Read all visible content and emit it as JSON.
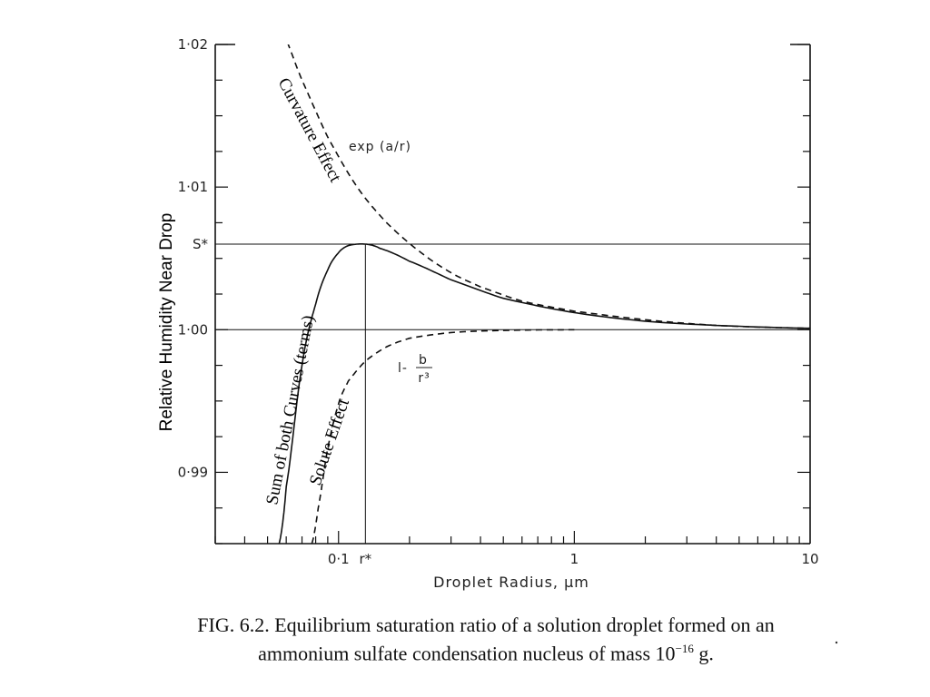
{
  "chart_data": {
    "type": "line",
    "xscale": "log",
    "xlim": [
      0.03,
      10
    ],
    "ylim": [
      0.985,
      1.02
    ],
    "xlabel": "Droplet Radius, μm",
    "ylabel": "Relative Humidity Near Drop",
    "x_ticks": [
      {
        "value": 0.1,
        "label": "0·1"
      },
      {
        "value": 0.13,
        "label": "r*"
      },
      {
        "value": 1,
        "label": "1"
      },
      {
        "value": 10,
        "label": "10"
      }
    ],
    "y_ticks": [
      {
        "value": 1.02,
        "label": "1·02"
      },
      {
        "value": 1.01,
        "label": "1·01"
      },
      {
        "value": 1.006,
        "label": "S*"
      },
      {
        "value": 1.0,
        "label": "1·00"
      },
      {
        "value": 0.99,
        "label": "0·99"
      }
    ],
    "series": [
      {
        "name": "exp (a/r)",
        "style": "dashed",
        "x": [
          0.055,
          0.07,
          0.09,
          0.12,
          0.16,
          0.22,
          0.3,
          0.4,
          0.6,
          1,
          2,
          4,
          10
        ],
        "y": [
          1.0215,
          1.0175,
          1.0135,
          1.01,
          1.0075,
          1.0055,
          1.004,
          1.003,
          1.002,
          1.0013,
          1.0007,
          1.0003,
          1.0001
        ]
      },
      {
        "name": "1 - b/r³",
        "style": "dashed",
        "x": [
          0.077,
          0.082,
          0.09,
          0.1,
          0.11,
          0.13,
          0.16,
          0.2,
          0.3,
          0.5,
          1
        ],
        "y": [
          0.985,
          0.9875,
          0.9917,
          0.9948,
          0.9964,
          0.9978,
          0.9988,
          0.9994,
          0.9998,
          0.99995,
          1.0
        ]
      },
      {
        "name": "Sum of both Curves (terms)",
        "style": "solid",
        "x": [
          0.056,
          0.06,
          0.07,
          0.08,
          0.09,
          0.1,
          0.11,
          0.13,
          0.15,
          0.2,
          0.3,
          0.5,
          1,
          2,
          4,
          10
        ],
        "y": [
          0.985,
          0.989,
          0.9975,
          1.0018,
          1.0042,
          1.0054,
          1.0059,
          1.006,
          1.0057,
          1.0048,
          1.0035,
          1.0022,
          1.0012,
          1.0006,
          1.0003,
          1.0001
        ]
      }
    ],
    "reference_lines": [
      {
        "label": "S*",
        "y": 1.006
      },
      {
        "label": "r*",
        "x": 0.13
      },
      {
        "label": "1·00",
        "y": 1.0
      }
    ],
    "annotations": {
      "exp_label": "exp (a/r)",
      "solute_label_prefix": "l-",
      "solute_label_num": "b",
      "solute_label_den": "r³",
      "curvature": "Curvature Effect",
      "solute": "Solute Effect",
      "sum": "Sum of both Curves (terms)"
    },
    "grid": false
  },
  "caption": {
    "line1": "FIG. 6.2. Equilibrium saturation ratio of a solution droplet formed on an",
    "line2_prefix": "ammonium sulfate condensation nucleus of mass 10",
    "line2_exp": "−16",
    "line2_suffix": " g."
  }
}
